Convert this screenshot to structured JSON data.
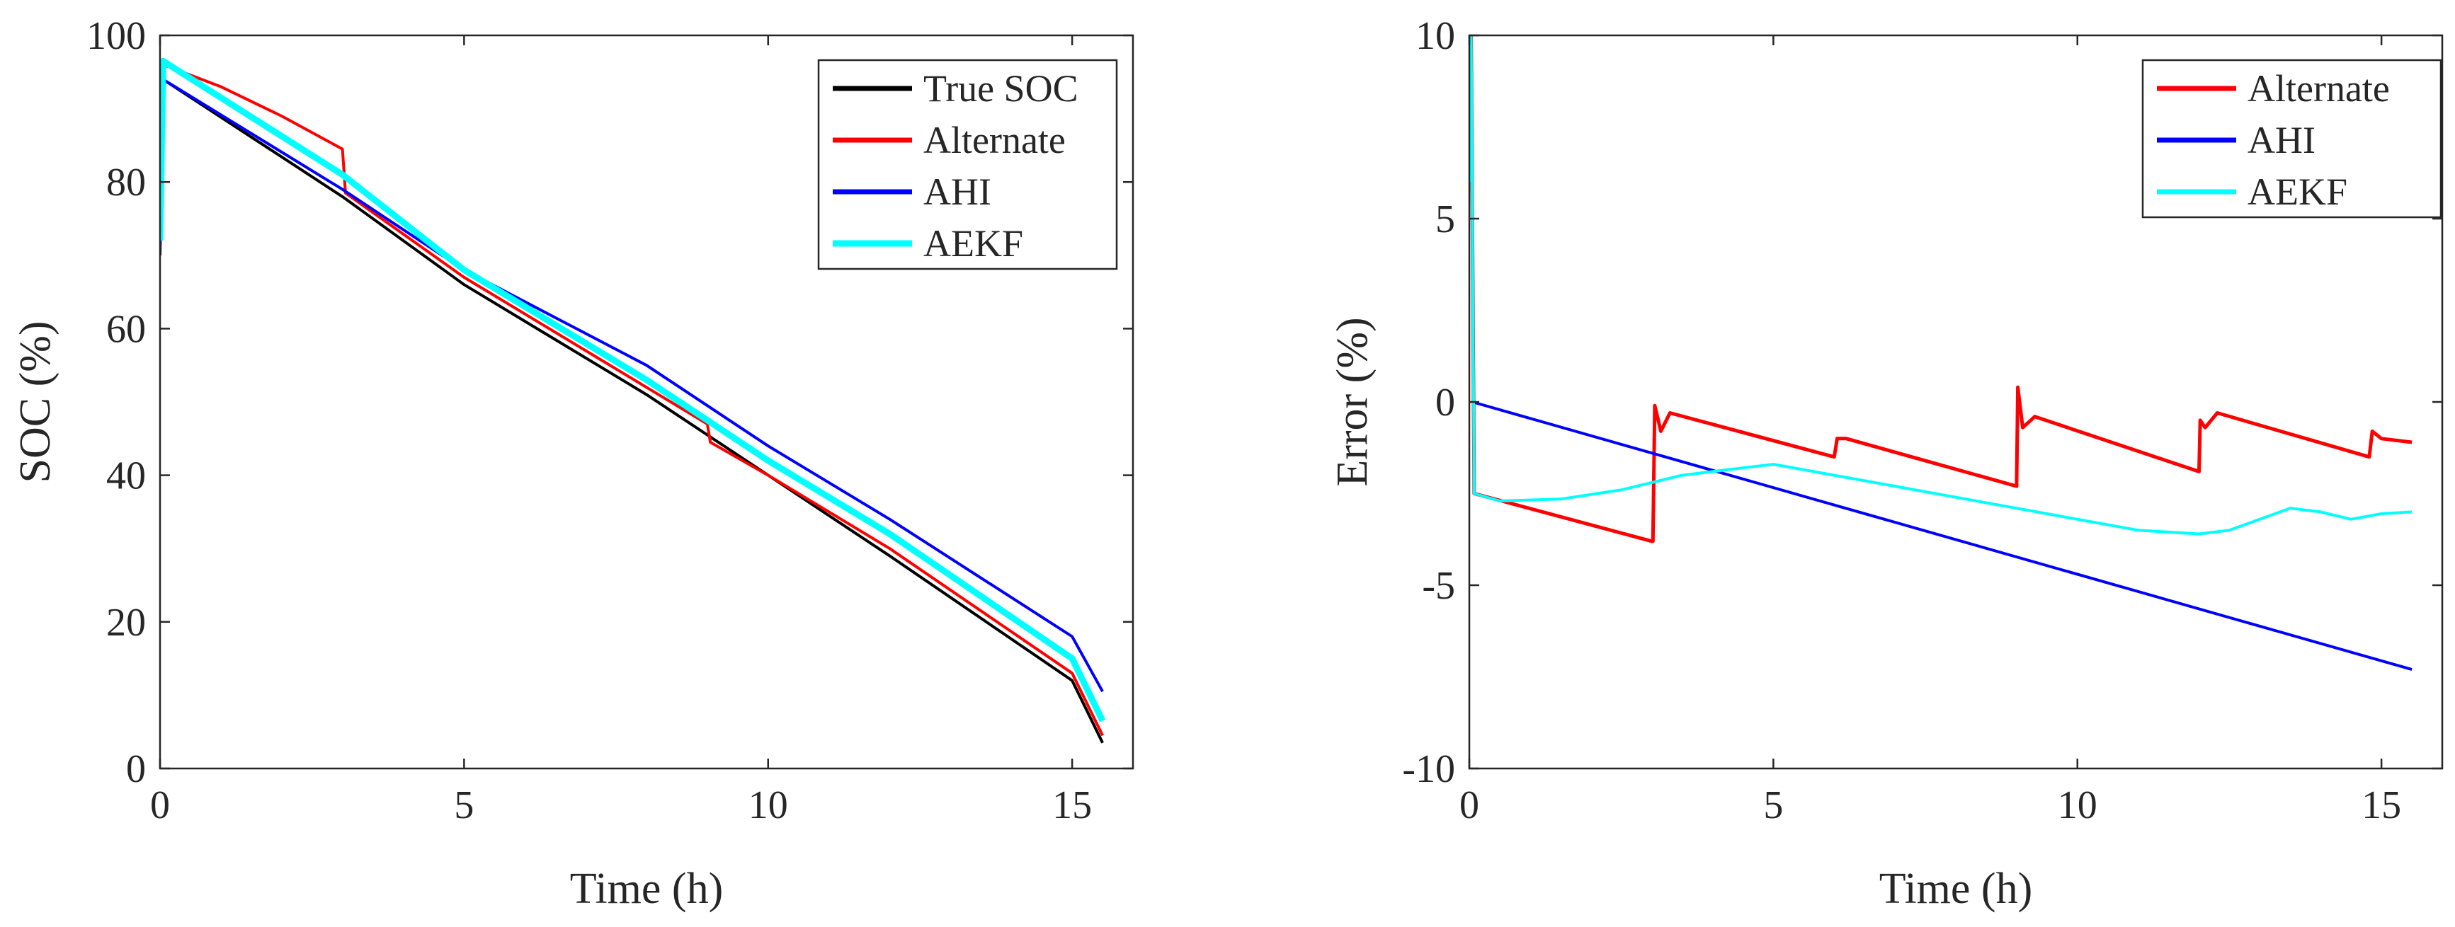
{
  "chart_data": [
    {
      "type": "line",
      "title": "",
      "xlabel": "Time (h)",
      "ylabel": "SOC (%)",
      "xlim": [
        0,
        16
      ],
      "ylim": [
        0,
        100
      ],
      "xticks": [
        0,
        5,
        10,
        15
      ],
      "yticks": [
        0,
        20,
        40,
        60,
        80,
        100
      ],
      "x_tick_labels": [
        "0",
        "5",
        "10",
        "15"
      ],
      "y_tick_labels": [
        "0",
        "20",
        "40",
        "60",
        "80",
        "100"
      ],
      "legend_position": "top-right",
      "series": [
        {
          "name": "True SOC",
          "color": "#000000",
          "x": [
            0,
            0.05,
            3,
            5,
            8,
            10,
            12,
            15,
            15.5
          ],
          "y": [
            70,
            94,
            78,
            66,
            51,
            40,
            29,
            12,
            3.5
          ]
        },
        {
          "name": "Alternate",
          "color": "#ff0000",
          "x": [
            0,
            0.05,
            1,
            2,
            3,
            3.05,
            5,
            6,
            8,
            9,
            9.05,
            10,
            12,
            15,
            15.5
          ],
          "y": [
            71,
            96,
            93,
            89,
            84.5,
            78.5,
            67,
            62,
            52,
            47,
            44.5,
            40,
            30,
            13,
            4.5
          ]
        },
        {
          "name": "AHI",
          "color": "#0000ff",
          "x": [
            0,
            0.05,
            3,
            5,
            8,
            10,
            12,
            15,
            15.5
          ],
          "y": [
            71,
            94,
            79,
            68,
            55,
            44,
            34,
            18,
            10.5
          ]
        },
        {
          "name": "AEKF",
          "color": "#00ffff",
          "x": [
            0,
            0.05,
            3,
            5,
            8,
            10,
            12,
            15,
            15.5
          ],
          "y": [
            72,
            96.5,
            81,
            68,
            53,
            42,
            32,
            15,
            6.5
          ]
        }
      ]
    },
    {
      "type": "line",
      "title": "",
      "xlabel": "Time (h)",
      "ylabel": "Error (%)",
      "xlim": [
        0,
        16
      ],
      "ylim": [
        -10,
        10
      ],
      "xticks": [
        0,
        5,
        10,
        15
      ],
      "yticks": [
        -10,
        -5,
        0,
        5,
        10
      ],
      "x_tick_labels": [
        "0",
        "5",
        "10",
        "15"
      ],
      "y_tick_labels": [
        "-10",
        "-5",
        "0",
        "5",
        "10"
      ],
      "legend_position": "top-right",
      "series": [
        {
          "name": "Alternate",
          "color": "#ff0000",
          "x": [
            0,
            0.03,
            0.08,
            3,
            3.02,
            3.05,
            3.15,
            3.3,
            6,
            6.05,
            6.2,
            9,
            9.02,
            9.1,
            9.3,
            12,
            12.02,
            12.1,
            12.3,
            14.8,
            14.85,
            15,
            15.5
          ],
          "y": [
            6,
            10,
            -2.5,
            -3.8,
            -3.8,
            -0.1,
            -0.8,
            -0.3,
            -1.5,
            -1.0,
            -1.0,
            -2.3,
            0.4,
            -0.7,
            -0.4,
            -1.9,
            -0.5,
            -0.7,
            -0.3,
            -1.5,
            -0.8,
            -1.0,
            -1.1
          ]
        },
        {
          "name": "AHI",
          "color": "#0000ff",
          "x": [
            0.05,
            15.5
          ],
          "y": [
            0,
            -7.3
          ]
        },
        {
          "name": "AEKF",
          "color": "#00ffff",
          "x": [
            0,
            0.03,
            0.08,
            0.5,
            1.5,
            2.5,
            3.5,
            4.5,
            5,
            6,
            7,
            8,
            9,
            10,
            11,
            12,
            12.5,
            13,
            13.5,
            14,
            14.5,
            15,
            15.5
          ],
          "y": [
            6,
            10,
            -2.5,
            -2.7,
            -2.65,
            -2.4,
            -2.0,
            -1.8,
            -1.7,
            -2.0,
            -2.3,
            -2.6,
            -2.9,
            -3.2,
            -3.5,
            -3.6,
            -3.5,
            -3.2,
            -2.9,
            -3.0,
            -3.2,
            -3.05,
            -3.0
          ]
        }
      ]
    }
  ]
}
